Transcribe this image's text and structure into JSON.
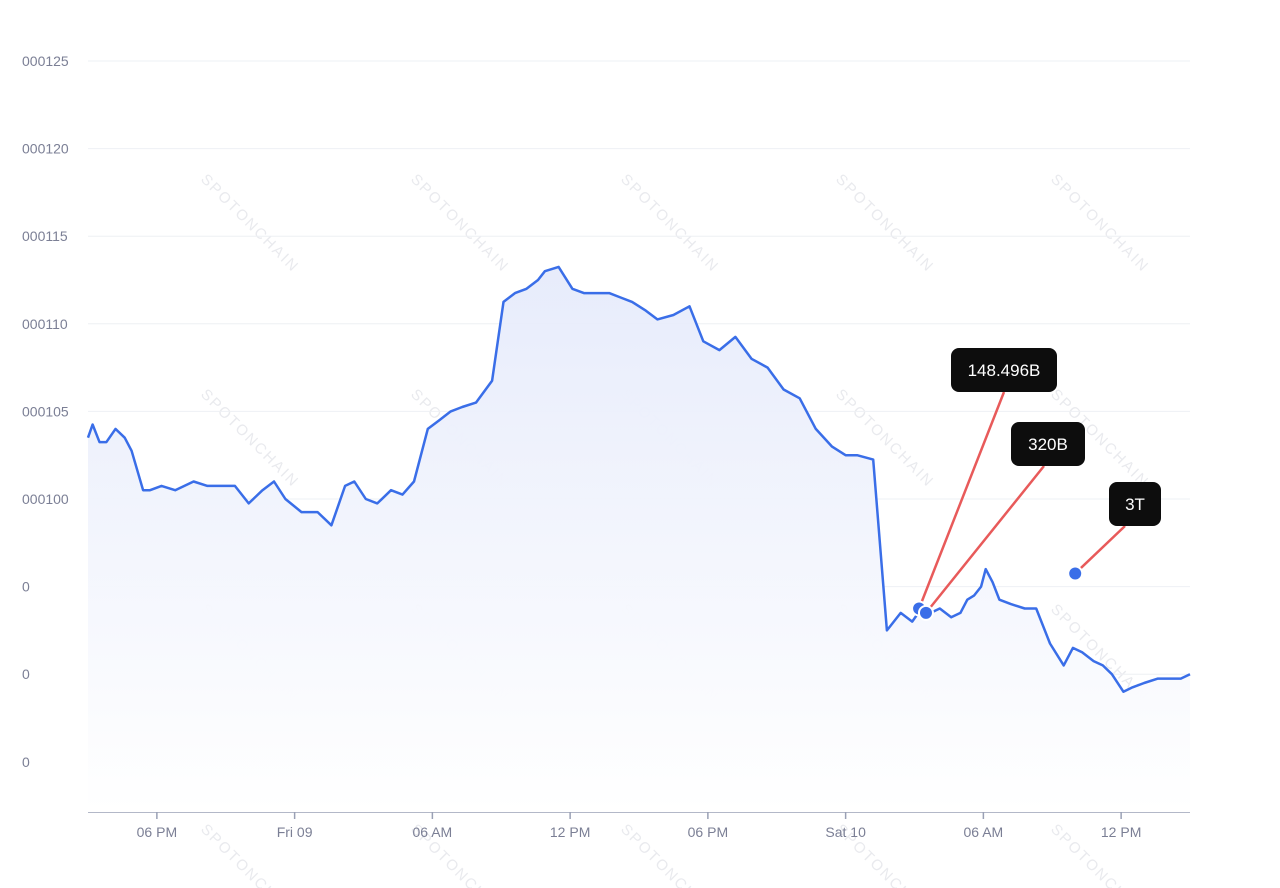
{
  "watermark": "SPOTONCHAIN",
  "colors": {
    "line": "#3a6ee8",
    "area_top": "#e6ebfb",
    "area_bottom": "#ffffff",
    "callout_bg": "#0d0d0d",
    "callout_line": "#e85a5a",
    "axis": "#9aa0b5"
  },
  "chart_data": {
    "type": "line",
    "title": "",
    "xlabel": "",
    "ylabel": "",
    "y_tick_labels": [
      "000125",
      "000120",
      "000115",
      "000110",
      "000105",
      "000100",
      "0",
      "0",
      "0"
    ],
    "x_tick_labels": [
      "06 PM",
      "Fri 09",
      "06 AM",
      "12 PM",
      "06 PM",
      "Sat 10",
      "06 AM",
      "12 PM"
    ],
    "x_range_hours": [
      -3,
      45
    ],
    "y_axis_note": "tick labels truncated at left edge; units in y_index are tick steps from top label",
    "series": [
      {
        "x_hours": [
          -3,
          -2.8,
          -2.5,
          -2.2,
          -1.8,
          -1.4,
          -1.1,
          -0.6,
          -0.3,
          0.2,
          0.8,
          1.2,
          1.6,
          2.2,
          2.8,
          3.4,
          4,
          4.6,
          5.1,
          5.6,
          6.3,
          7,
          7.6,
          8.2,
          8.6,
          9.1,
          9.6,
          10.2,
          10.7,
          11.2,
          11.8,
          12.3,
          12.8,
          13.3,
          13.9,
          14.6,
          15.1,
          15.6,
          16.1,
          16.6,
          16.9,
          17.5,
          18.1,
          18.6,
          19.1,
          19.7,
          20.2,
          20.7,
          21.3,
          21.8,
          22.5,
          23.2,
          23.8,
          24.5,
          25.2,
          25.9,
          26.6,
          27.3,
          28,
          28.7,
          29.4,
          30,
          30.5,
          31.2,
          31.8,
          32.4,
          32.9,
          33.3,
          33.7,
          34.1,
          34.6,
          35,
          35.3,
          35.6,
          35.9,
          36.1,
          36.4,
          36.7,
          37.2,
          37.8,
          38.3,
          38.9,
          39.5,
          39.9,
          40.3,
          40.8,
          41.2,
          41.6,
          42.1,
          42.5,
          43,
          43.6,
          44.1,
          44.6,
          45
        ],
        "y_index": [
          4.3,
          4.15,
          4.35,
          4.35,
          4.2,
          4.3,
          4.45,
          4.9,
          4.9,
          4.85,
          4.9,
          4.85,
          4.8,
          4.85,
          4.85,
          4.85,
          5.05,
          4.9,
          4.8,
          5.0,
          5.15,
          5.15,
          5.3,
          4.85,
          4.8,
          5.0,
          5.05,
          4.9,
          4.95,
          4.8,
          4.2,
          4.1,
          4.0,
          3.95,
          3.9,
          3.65,
          2.75,
          2.65,
          2.6,
          2.5,
          2.4,
          2.35,
          2.6,
          2.65,
          2.65,
          2.65,
          2.7,
          2.75,
          2.85,
          2.95,
          2.9,
          2.8,
          3.2,
          3.3,
          3.15,
          3.4,
          3.5,
          3.75,
          3.85,
          4.2,
          4.4,
          4.5,
          4.5,
          4.55,
          6.5,
          6.3,
          6.4,
          6.25,
          6.3,
          6.25,
          6.35,
          6.3,
          6.15,
          6.1,
          6.0,
          5.8,
          5.95,
          6.15,
          6.2,
          6.25,
          6.25,
          6.65,
          6.9,
          6.7,
          6.75,
          6.85,
          6.9,
          7.0,
          7.2,
          7.15,
          7.1,
          7.05,
          7.05,
          7.05,
          7.0
        ]
      }
    ],
    "annotations": [
      {
        "label": "148.496B",
        "x_hours": 33.2,
        "y_index": 6.25
      },
      {
        "label": "320B",
        "x_hours": 33.5,
        "y_index": 6.3
      },
      {
        "label": "3T",
        "x_hours": 40.0,
        "y_index": 5.85
      }
    ]
  }
}
